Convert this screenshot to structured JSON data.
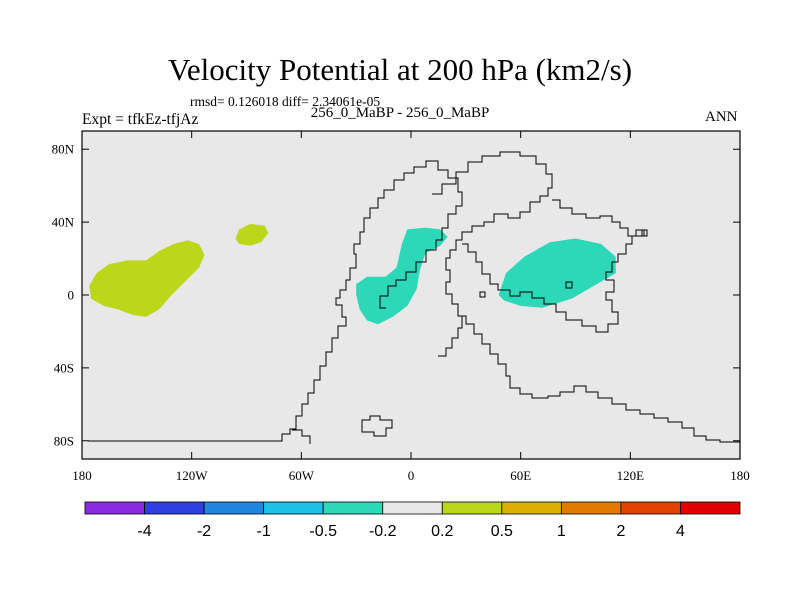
{
  "chart_data": {
    "type": "heatmap",
    "title": "Velocity Potential at 200 hPa (km2/s)",
    "stats_text": "rmsd= 0.126018 diff= 2.34061e-05",
    "left_label": "Expt = tfkEz-tfjAz",
    "center_label": "256_0_MaBP - 256_0_MaBP",
    "right_label": "ANN",
    "x_ticks": [
      {
        "value": -180,
        "label": "180"
      },
      {
        "value": -120,
        "label": "120W"
      },
      {
        "value": -60,
        "label": "60W"
      },
      {
        "value": 0,
        "label": "0"
      },
      {
        "value": 60,
        "label": "60E"
      },
      {
        "value": 120,
        "label": "120E"
      },
      {
        "value": 180,
        "label": "180"
      }
    ],
    "y_ticks": [
      {
        "value": 80,
        "label": "80N"
      },
      {
        "value": 40,
        "label": "40N"
      },
      {
        "value": 0,
        "label": "0"
      },
      {
        "value": -40,
        "label": "40S"
      },
      {
        "value": -80,
        "label": "80S"
      }
    ],
    "xlim": [
      -180,
      180
    ],
    "ylim": [
      -90,
      90
    ],
    "colorbar": {
      "colors": [
        "#8a2be2",
        "#2f3fe0",
        "#1f86e0",
        "#1ec0e6",
        "#2cd8b8",
        "#e8e8e8",
        "#bcd61a",
        "#dcb000",
        "#e07a00",
        "#e04400",
        "#e00000"
      ],
      "labels": [
        "-4",
        "-2",
        "-1",
        "-0.5",
        "-0.2",
        "0.2",
        "0.5",
        "1",
        "2",
        "4"
      ]
    },
    "background_color": "#e8e8e8",
    "regions": [
      {
        "name": "positive-region-east-pacific",
        "value_range": "0.2 to 0.5",
        "color": "#bcd61a",
        "outline": [
          [
            -175,
            -2
          ],
          [
            -176,
            5
          ],
          [
            -172,
            12
          ],
          [
            -165,
            17
          ],
          [
            -155,
            19
          ],
          [
            -145,
            19
          ],
          [
            -138,
            24
          ],
          [
            -130,
            28
          ],
          [
            -122,
            30
          ],
          [
            -116,
            28
          ],
          [
            -113,
            22
          ],
          [
            -116,
            15
          ],
          [
            -123,
            8
          ],
          [
            -131,
            0
          ],
          [
            -138,
            -8
          ],
          [
            -145,
            -12
          ],
          [
            -152,
            -11
          ],
          [
            -160,
            -8
          ],
          [
            -168,
            -6
          ]
        ]
      },
      {
        "name": "positive-region-north-pacific",
        "value_range": "0.2 to 0.5",
        "color": "#bcd61a",
        "outline": [
          [
            -96,
            31
          ],
          [
            -94,
            36
          ],
          [
            -88,
            39
          ],
          [
            -80,
            38
          ],
          [
            -78,
            34
          ],
          [
            -82,
            29
          ],
          [
            -88,
            27
          ],
          [
            -94,
            28
          ]
        ]
      },
      {
        "name": "negative-region-atlantic",
        "value_range": "-0.5 to -0.2",
        "color": "#2cd8b8",
        "outline": [
          [
            -30,
            0
          ],
          [
            -30,
            6
          ],
          [
            -24,
            10
          ],
          [
            -14,
            10
          ],
          [
            -8,
            15
          ],
          [
            -5,
            28
          ],
          [
            -2,
            36
          ],
          [
            8,
            37
          ],
          [
            16,
            36
          ],
          [
            20,
            32
          ],
          [
            16,
            27
          ],
          [
            8,
            23
          ],
          [
            5,
            14
          ],
          [
            3,
            3
          ],
          [
            -2,
            -6
          ],
          [
            -10,
            -12
          ],
          [
            -18,
            -16
          ],
          [
            -24,
            -14
          ],
          [
            -28,
            -8
          ]
        ]
      },
      {
        "name": "negative-region-indian-ocean",
        "value_range": "-0.5 to -0.2",
        "color": "#2cd8b8",
        "outline": [
          [
            48,
            0
          ],
          [
            52,
            12
          ],
          [
            62,
            21
          ],
          [
            76,
            29
          ],
          [
            90,
            31
          ],
          [
            104,
            28
          ],
          [
            112,
            21
          ],
          [
            112,
            12
          ],
          [
            100,
            5
          ],
          [
            88,
            -2
          ],
          [
            72,
            -7
          ],
          [
            60,
            -6
          ],
          [
            51,
            -3
          ]
        ]
      }
    ]
  }
}
